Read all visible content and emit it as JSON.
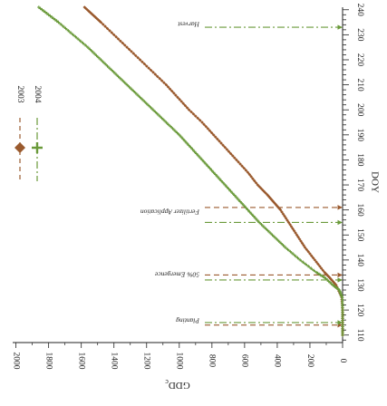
{
  "chart_data": {
    "type": "line",
    "orientation": "rotated-180",
    "xlabel": "DOY",
    "ylabel": "GDD",
    "ylabel_subscript": "c",
    "xlim": [
      107,
      241
    ],
    "ylim": [
      0,
      2020
    ],
    "x_ticks": [
      110,
      120,
      130,
      140,
      150,
      160,
      170,
      180,
      190,
      200,
      210,
      220,
      230,
      240
    ],
    "y_ticks": [
      0,
      200,
      400,
      600,
      800,
      1000,
      1200,
      1400,
      1600,
      1800,
      2000
    ],
    "grid": false,
    "legend_position": "outside-right",
    "series": [
      {
        "name": "2003",
        "color": "#9a5a2e",
        "marker": "diamond",
        "line_style": "dashed",
        "points": [
          [
            110,
            0
          ],
          [
            115,
            0
          ],
          [
            120,
            0
          ],
          [
            125,
            5
          ],
          [
            130,
            40
          ],
          [
            133,
            80
          ],
          [
            135,
            110
          ],
          [
            140,
            170
          ],
          [
            145,
            230
          ],
          [
            150,
            280
          ],
          [
            155,
            330
          ],
          [
            160,
            380
          ],
          [
            163,
            420
          ],
          [
            166,
            460
          ],
          [
            170,
            520
          ],
          [
            175,
            580
          ],
          [
            180,
            650
          ],
          [
            185,
            720
          ],
          [
            190,
            790
          ],
          [
            195,
            860
          ],
          [
            200,
            940
          ],
          [
            205,
            1010
          ],
          [
            210,
            1080
          ],
          [
            215,
            1160
          ],
          [
            220,
            1240
          ],
          [
            225,
            1320
          ],
          [
            230,
            1400
          ],
          [
            235,
            1480
          ],
          [
            238,
            1530
          ],
          [
            241,
            1580
          ],
          [
            245,
            1660
          ],
          [
            250,
            1750
          ]
        ]
      },
      {
        "name": "2004",
        "color": "#6a9a3a",
        "marker": "plus",
        "line_style": "dash-dot",
        "points": [
          [
            110,
            0
          ],
          [
            115,
            0
          ],
          [
            120,
            0
          ],
          [
            125,
            3
          ],
          [
            128,
            20
          ],
          [
            130,
            60
          ],
          [
            133,
            110
          ],
          [
            135,
            160
          ],
          [
            140,
            260
          ],
          [
            145,
            350
          ],
          [
            150,
            430
          ],
          [
            155,
            510
          ],
          [
            160,
            580
          ],
          [
            165,
            650
          ],
          [
            170,
            720
          ],
          [
            175,
            790
          ],
          [
            180,
            860
          ],
          [
            185,
            930
          ],
          [
            190,
            1000
          ],
          [
            195,
            1080
          ],
          [
            200,
            1160
          ],
          [
            205,
            1240
          ],
          [
            210,
            1320
          ],
          [
            215,
            1400
          ],
          [
            220,
            1480
          ],
          [
            225,
            1560
          ],
          [
            230,
            1650
          ],
          [
            235,
            1740
          ],
          [
            238,
            1800
          ],
          [
            241,
            1860
          ],
          [
            245,
            1920
          ]
        ]
      }
    ],
    "annotations": [
      {
        "label": "Planting",
        "events": [
          {
            "series": "2003",
            "doy": 114
          },
          {
            "series": "2004",
            "doy": 115
          }
        ]
      },
      {
        "label": "50% Emergence",
        "events": [
          {
            "series": "2003",
            "doy": 134
          },
          {
            "series": "2004",
            "doy": 132
          }
        ]
      },
      {
        "label": "Fertilizer Application",
        "events": [
          {
            "series": "2003",
            "doy": 161
          },
          {
            "series": "2004",
            "doy": 155
          }
        ]
      },
      {
        "label": "Harvest",
        "events": [
          {
            "series": "2004",
            "doy": 233
          }
        ]
      }
    ]
  }
}
